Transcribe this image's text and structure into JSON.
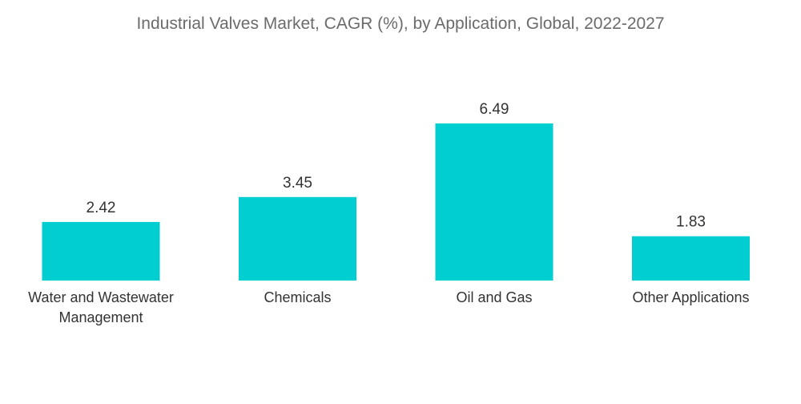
{
  "title": "Industrial Valves Market, CAGR (%), by Application, Global, 2022-2027",
  "colors": {
    "bar": "#00CED1",
    "title": "#6b6b6b",
    "text": "#333333",
    "background": "#ffffff"
  },
  "chart_data": {
    "type": "bar",
    "title": "Industrial Valves Market, CAGR (%), by Application, Global, 2022-2027",
    "categories": [
      [
        "Water and Wastewater",
        "Management"
      ],
      [
        "Chemicals"
      ],
      [
        "Oil and Gas"
      ],
      [
        "Other Applications"
      ]
    ],
    "values": [
      2.42,
      3.45,
      6.49,
      1.83
    ],
    "value_labels": [
      "2.42",
      "3.45",
      "6.49",
      "1.83"
    ],
    "xlabel": "",
    "ylabel": "",
    "ylim": [
      0,
      6.49
    ],
    "grid": false,
    "legend": "none",
    "axes_visible": false
  }
}
